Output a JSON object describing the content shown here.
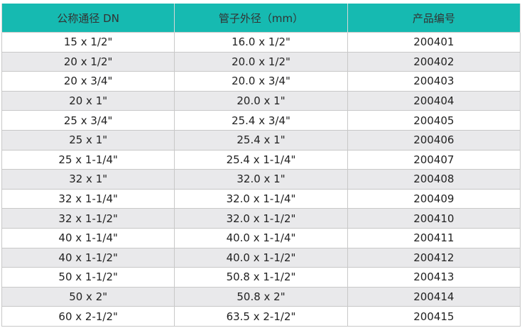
{
  "table": {
    "headers": [
      "公称通径 DN",
      "管子外径（mm）",
      "产品编号"
    ],
    "header_color": "#16bab1",
    "rows": [
      [
        "15 x 1/2\"",
        "16.0 x 1/2\"",
        "200401"
      ],
      [
        "20 x 1/2\"",
        "20.0 x 1/2\"",
        "200402"
      ],
      [
        "20 x 3/4\"",
        "20.0 x 3/4\"",
        "200403"
      ],
      [
        "20 x 1\"",
        "20.0 x 1\"",
        "200404"
      ],
      [
        "25 x 3/4\"",
        "25.4 x 3/4\"",
        "200405"
      ],
      [
        "25 x 1\"",
        "25.4 x 1\"",
        "200406"
      ],
      [
        "25 x 1-1/4\"",
        "25.4 x 1-1/4\"",
        "200407"
      ],
      [
        "32 x 1\"",
        "32.0 x 1\"",
        "200408"
      ],
      [
        "32 x 1-1/4\"",
        "32.0 x 1-1/4\"",
        "200409"
      ],
      [
        "32 x 1-1/2\"",
        "32.0 x 1-1/2\"",
        "200410"
      ],
      [
        "40 x 1-1/4\"",
        "40.0 x 1-1/4\"",
        "200411"
      ],
      [
        "40 x 1-1/2\"",
        "40.0 x 1-1/2\"",
        "200412"
      ],
      [
        "50 x 1-1/2\"",
        "50.8 x 1-1/2\"",
        "200413"
      ],
      [
        "50 x 2\"",
        "50.8 x 2\"",
        "200414"
      ],
      [
        "60 x 2-1/2\"",
        "63.5 x 2-1/2\"",
        "200415"
      ]
    ]
  }
}
